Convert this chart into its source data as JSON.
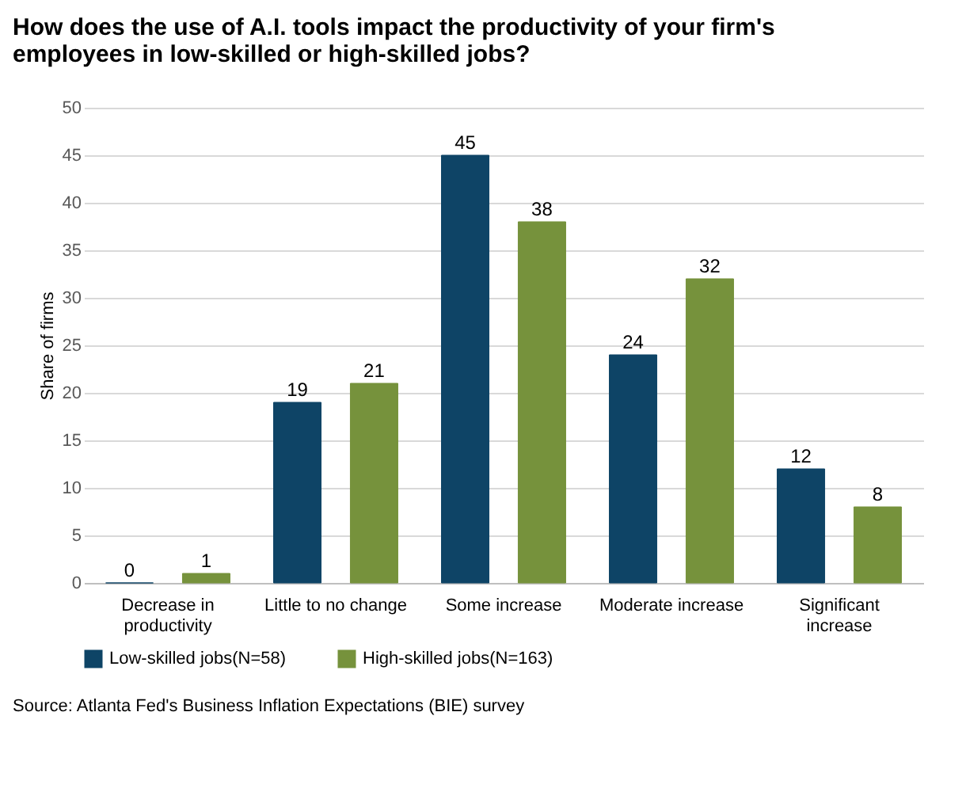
{
  "chart_data": {
    "type": "bar",
    "title": "How does the use of A.I. tools impact the productivity of your firm's employees in low-skilled or high-skilled jobs?",
    "ylabel": "Share of firms",
    "categories": [
      "Decrease in productivity",
      "Little to no change",
      "Some increase",
      "Moderate increase",
      "Significant increase"
    ],
    "series": [
      {
        "name": "Low-skilled jobs(N=58)",
        "color": "#0e4466",
        "values": [
          0,
          19,
          45,
          24,
          12
        ]
      },
      {
        "name": "High-skilled jobs(N=163)",
        "color": "#76923c",
        "values": [
          1,
          21,
          38,
          32,
          8
        ]
      }
    ],
    "ylim": [
      0,
      50
    ],
    "yticks": [
      0,
      5,
      10,
      15,
      20,
      25,
      30,
      35,
      40,
      45,
      50
    ],
    "grid": "y",
    "legend": "bottom",
    "data_labels": true,
    "annotations": [
      "Source: Atlanta Fed's Business Inflation Expectations (BIE) survey"
    ]
  }
}
